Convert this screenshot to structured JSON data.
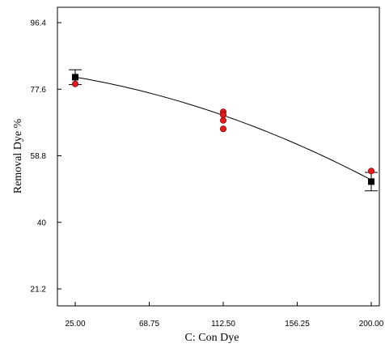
{
  "chart_data": {
    "type": "scatter",
    "title": "",
    "xlabel": "C: Con Dye",
    "ylabel": "Removal Dye %",
    "xlim": [
      25.0,
      200.0
    ],
    "ylim": [
      21.2,
      96.4
    ],
    "x_ticks": [
      "25.00",
      "68.75",
      "112.50",
      "156.25",
      "200.00"
    ],
    "y_ticks": [
      "21.2",
      "40",
      "58.8",
      "77.6",
      "96.4"
    ],
    "grid": false,
    "legend": "none",
    "fit_line": {
      "x": [
        25.0,
        68.75,
        112.5,
        156.25,
        200.0
      ],
      "y": [
        81.0,
        76.6,
        70.2,
        62.0,
        52.0
      ]
    },
    "predicted_points": [
      {
        "x": 25.0,
        "y": 81.0,
        "err": 2.1
      },
      {
        "x": 200.0,
        "y": 51.5,
        "err": 2.6
      }
    ],
    "observed_points": [
      {
        "x": 25.0,
        "y": 79.1
      },
      {
        "x": 112.5,
        "y": 71.2
      },
      {
        "x": 112.5,
        "y": 70.4
      },
      {
        "x": 112.5,
        "y": 68.8
      },
      {
        "x": 112.5,
        "y": 66.4
      },
      {
        "x": 200.0,
        "y": 54.5
      }
    ],
    "colors": {
      "observed": "#e31a1c",
      "predicted": "#000000",
      "line": "#000000"
    }
  }
}
